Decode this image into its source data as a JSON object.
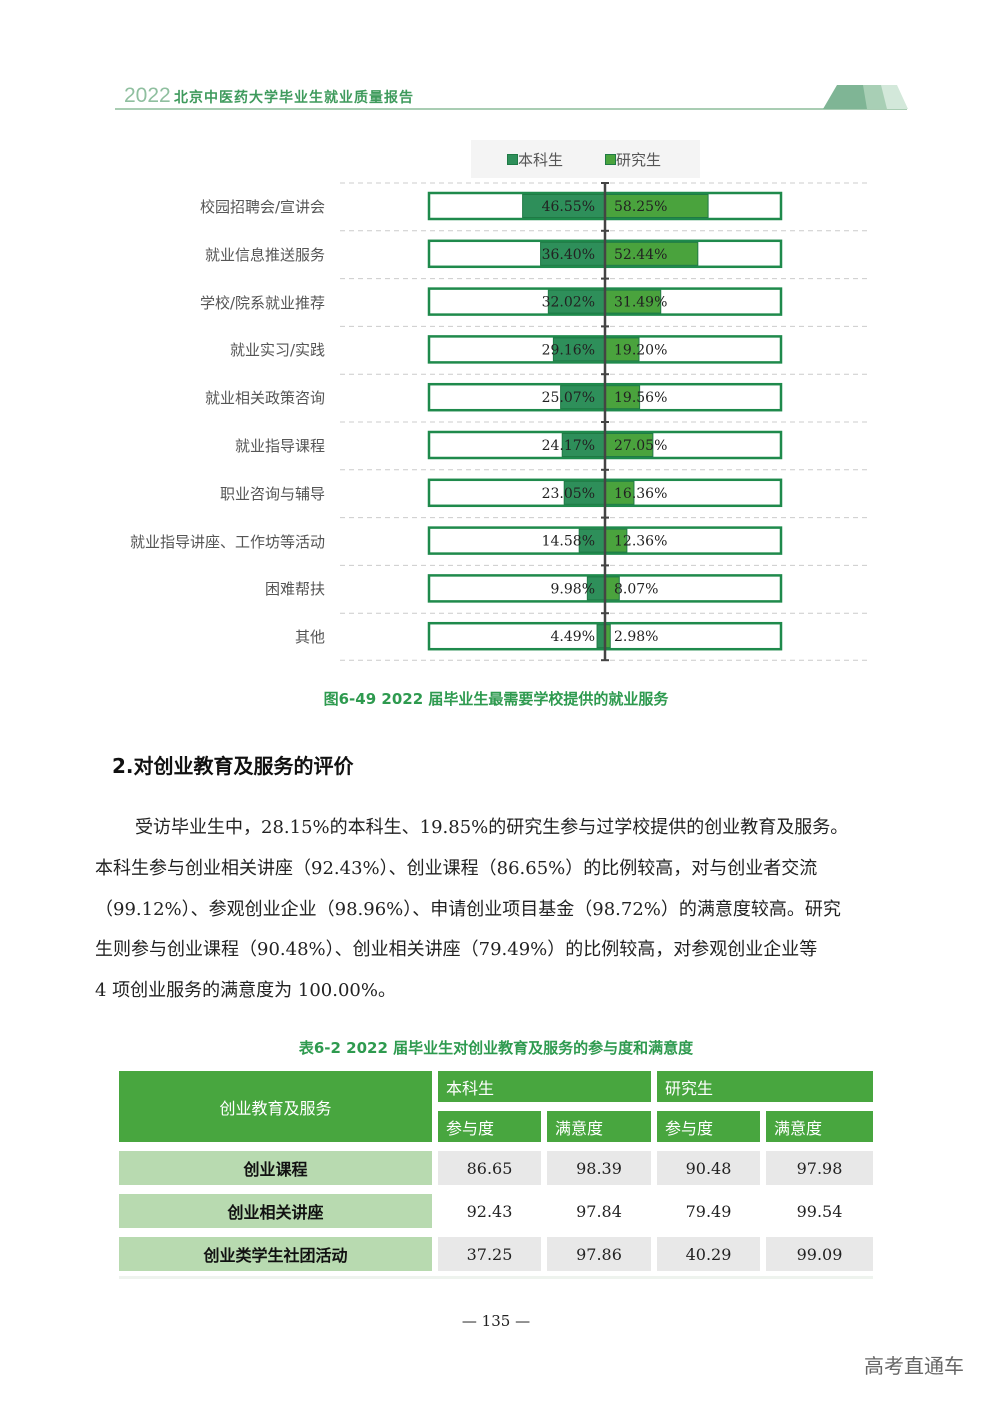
{
  "header": {
    "year": "2022",
    "title": "北京中医药大学毕业生就业质量报告"
  },
  "figure": {
    "caption": "图6-49 2022 届毕业生最需要学校提供的就业服务"
  },
  "chart_data": {
    "type": "bar",
    "orientation": "horizontal-diverging",
    "legend": [
      "本科生",
      "研究生"
    ],
    "legend_placement": "top",
    "categories": [
      "校园招聘会/宣讲会",
      "就业信息推送服务",
      "学校/院系就业推荐",
      "就业实习/实践",
      "就业相关政策咨询",
      "就业指导课程",
      "职业咨询与辅导",
      "就业指导讲座、工作坊等活动",
      "困难帮扶",
      "其他"
    ],
    "series": [
      {
        "name": "本科生",
        "values": [
          46.55,
          36.4,
          32.02,
          29.16,
          25.07,
          24.17,
          23.05,
          14.58,
          9.98,
          4.49
        ],
        "labels": [
          "46.55%",
          "36.40%",
          "32.02%",
          "29.16%",
          "25.07%",
          "24.17%",
          "23.05%",
          "14.58%",
          "9.98%",
          "4.49%"
        ],
        "color": "#2e8f5a"
      },
      {
        "name": "研究生",
        "values": [
          58.25,
          52.44,
          31.49,
          19.2,
          19.56,
          27.05,
          16.36,
          12.36,
          8.07,
          2.98
        ],
        "labels": [
          "58.25%",
          "52.44%",
          "31.49%",
          "19.20%",
          "19.56%",
          "27.05%",
          "16.36%",
          "12.36%",
          "8.07%",
          "2.98%"
        ],
        "color": "#4aa33d"
      }
    ],
    "xlim": [
      0,
      100
    ],
    "grid": "dashed horizontal",
    "outline_color": "#1f8a4c"
  },
  "section": {
    "title": "2.对创业教育及服务的评价"
  },
  "paragraph": [
    "受访毕业生中，28.15%的本科生、19.85%的研究生参与过学校提供的创业教育及服务。",
    "本科生参与创业相关讲座（92.43%）、创业课程（86.65%）的比例较高，对与创业者交流",
    "（99.12%）、参观创业企业（98.96%）、申请创业项目基金（98.72%）的满意度较高。研究",
    "生则参与创业课程（90.48%）、创业相关讲座（79.49%）的比例较高，对参观创业企业等",
    "4 项创业服务的满意度为 100.00%。"
  ],
  "table": {
    "caption": "表6-2  2022 届毕业生对创业教育及服务的参与度和满意度",
    "corner": "创业教育及服务",
    "groups": [
      "本科生",
      "研究生"
    ],
    "subheaders": [
      "参与度",
      "满意度",
      "参与度",
      "满意度"
    ],
    "rows": [
      {
        "name": "创业课程",
        "values": [
          "86.65",
          "98.39",
          "90.48",
          "97.98"
        ]
      },
      {
        "name": "创业相关讲座",
        "values": [
          "92.43",
          "97.84",
          "79.49",
          "99.54"
        ]
      },
      {
        "name": "创业类学生社团活动",
        "values": [
          "37.25",
          "97.86",
          "40.29",
          "99.09"
        ]
      }
    ]
  },
  "footer": {
    "page": "— 135 —"
  },
  "watermark": "高考直通车"
}
